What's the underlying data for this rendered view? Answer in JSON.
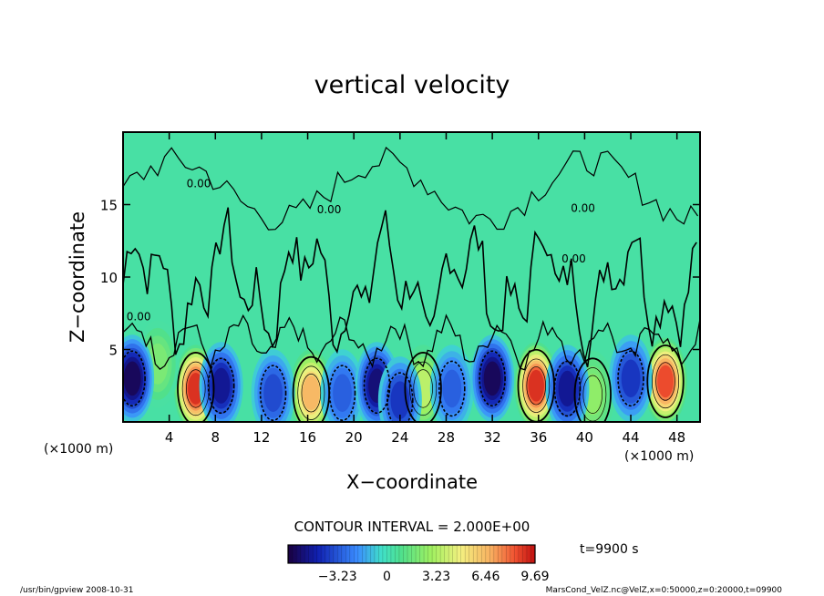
{
  "chart_data": {
    "type": "heatmap",
    "title": "vertical velocity",
    "xlabel": "X−coordinate",
    "ylabel": "Z−coordinate",
    "x_unit_left": "(×1000 m)",
    "x_unit_right": "(×1000 m)",
    "xlim": [
      0,
      50
    ],
    "ylim": [
      0,
      20
    ],
    "x_ticks": [
      4,
      8,
      12,
      16,
      20,
      24,
      28,
      32,
      36,
      40,
      44,
      48
    ],
    "y_ticks": [
      5,
      10,
      15
    ],
    "contour_interval_label": "CONTOUR INTERVAL = 2.000E+00",
    "contour_zero_label": "0.00",
    "colorbar": {
      "ticks": [
        -3.23,
        0,
        3.23,
        6.46,
        9.69
      ],
      "tick_labels": [
        "−3.23",
        "0",
        "3.23",
        "6.46",
        "9.69"
      ],
      "range": [
        -6.46,
        9.69
      ]
    },
    "time_label": "t=9900 s",
    "footer_left": "/usr/bin/gpview   2008-10-31",
    "footer_right": "MarsCond_VelZ.nc@VelZ,x=0:50000,z=0:20000,t=09900",
    "updrafts": [
      {
        "x": 6.3,
        "z": 2.3,
        "w": 9.0
      },
      {
        "x": 16.3,
        "z": 2.0,
        "w": 6.5
      },
      {
        "x": 26.0,
        "z": 2.3,
        "w": 3.5
      },
      {
        "x": 35.8,
        "z": 2.5,
        "w": 9.0
      },
      {
        "x": 40.7,
        "z": 1.9,
        "w": 2.5
      },
      {
        "x": 47.0,
        "z": 2.8,
        "w": 8.5
      },
      {
        "x": 3.0,
        "z": 4.0,
        "w": 2.0
      }
    ],
    "downdrafts": [
      {
        "x": 0.8,
        "z": 3.0,
        "w": -6.0
      },
      {
        "x": 8.5,
        "z": 2.5,
        "w": -5.0
      },
      {
        "x": 13.0,
        "z": 2.0,
        "w": -3.5
      },
      {
        "x": 19.0,
        "z": 2.0,
        "w": -3.0
      },
      {
        "x": 22.0,
        "z": 2.5,
        "w": -5.5
      },
      {
        "x": 24.0,
        "z": 1.5,
        "w": -4.0
      },
      {
        "x": 28.5,
        "z": 2.3,
        "w": -3.0
      },
      {
        "x": 32.0,
        "z": 3.0,
        "w": -6.0
      },
      {
        "x": 38.5,
        "z": 2.3,
        "w": -5.0
      },
      {
        "x": 44.0,
        "z": 3.0,
        "w": -4.0
      }
    ]
  }
}
